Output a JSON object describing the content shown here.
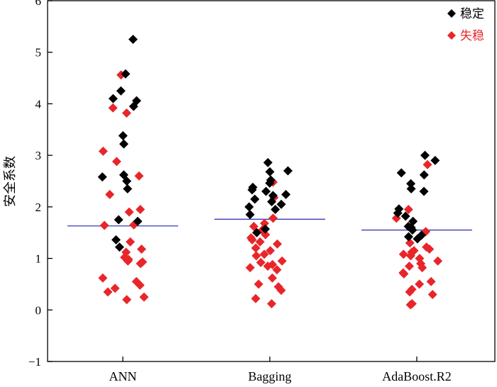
{
  "chart_data": {
    "type": "scatter",
    "title": "",
    "xlabel": "",
    "ylabel": "安全系数",
    "categories": [
      "ANN",
      "Bagging",
      "AdaBoost.R2"
    ],
    "ylim": [
      -1,
      6
    ],
    "yticks": [
      -1,
      0,
      1,
      2,
      3,
      4,
      5,
      6
    ],
    "grid": false,
    "legend_position": "top-right",
    "colors": {
      "stable": "#000000",
      "unstable": "#e8262a",
      "mean_line": "#3a3ab4"
    },
    "mean_lines": [
      1.63,
      1.76,
      1.55
    ],
    "series": [
      {
        "name": "稳定",
        "points": [
          {
            "cat": 0,
            "y": 5.25
          },
          {
            "cat": 0,
            "y": 4.58
          },
          {
            "cat": 0,
            "y": 4.25
          },
          {
            "cat": 0,
            "y": 4.1
          },
          {
            "cat": 0,
            "y": 4.06
          },
          {
            "cat": 0,
            "y": 3.95
          },
          {
            "cat": 0,
            "y": 3.38
          },
          {
            "cat": 0,
            "y": 3.22
          },
          {
            "cat": 0,
            "y": 2.62
          },
          {
            "cat": 0,
            "y": 2.58
          },
          {
            "cat": 0,
            "y": 2.5
          },
          {
            "cat": 0,
            "y": 2.35
          },
          {
            "cat": 0,
            "y": 1.75
          },
          {
            "cat": 0,
            "y": 1.72
          },
          {
            "cat": 0,
            "y": 1.36
          },
          {
            "cat": 0,
            "y": 1.22
          },
          {
            "cat": 1,
            "y": 2.86
          },
          {
            "cat": 1,
            "y": 2.7
          },
          {
            "cat": 1,
            "y": 2.68
          },
          {
            "cat": 1,
            "y": 2.52
          },
          {
            "cat": 1,
            "y": 2.46
          },
          {
            "cat": 1,
            "y": 2.38
          },
          {
            "cat": 1,
            "y": 2.33
          },
          {
            "cat": 1,
            "y": 2.3
          },
          {
            "cat": 1,
            "y": 2.24
          },
          {
            "cat": 1,
            "y": 2.22
          },
          {
            "cat": 1,
            "y": 2.15
          },
          {
            "cat": 1,
            "y": 2.1
          },
          {
            "cat": 1,
            "y": 2.05
          },
          {
            "cat": 1,
            "y": 2.0
          },
          {
            "cat": 1,
            "y": 1.95
          },
          {
            "cat": 1,
            "y": 1.85
          },
          {
            "cat": 1,
            "y": 1.57
          },
          {
            "cat": 1,
            "y": 1.5
          },
          {
            "cat": 2,
            "y": 3.0
          },
          {
            "cat": 2,
            "y": 2.9
          },
          {
            "cat": 2,
            "y": 2.66
          },
          {
            "cat": 2,
            "y": 2.62
          },
          {
            "cat": 2,
            "y": 2.45
          },
          {
            "cat": 2,
            "y": 2.35
          },
          {
            "cat": 2,
            "y": 2.3
          },
          {
            "cat": 2,
            "y": 1.96
          },
          {
            "cat": 2,
            "y": 1.88
          },
          {
            "cat": 2,
            "y": 1.82
          },
          {
            "cat": 2,
            "y": 1.72
          },
          {
            "cat": 2,
            "y": 1.62
          },
          {
            "cat": 2,
            "y": 1.6
          },
          {
            "cat": 2,
            "y": 1.55
          },
          {
            "cat": 2,
            "y": 1.45
          },
          {
            "cat": 2,
            "y": 1.42
          },
          {
            "cat": 2,
            "y": 1.38
          }
        ]
      },
      {
        "name": "失稳",
        "points": [
          {
            "cat": 0,
            "y": 4.56
          },
          {
            "cat": 0,
            "y": 3.92
          },
          {
            "cat": 0,
            "y": 3.82
          },
          {
            "cat": 0,
            "y": 3.08
          },
          {
            "cat": 0,
            "y": 2.88
          },
          {
            "cat": 0,
            "y": 2.6
          },
          {
            "cat": 0,
            "y": 2.24
          },
          {
            "cat": 0,
            "y": 1.95
          },
          {
            "cat": 0,
            "y": 1.9
          },
          {
            "cat": 0,
            "y": 1.65
          },
          {
            "cat": 0,
            "y": 1.64
          },
          {
            "cat": 0,
            "y": 1.32
          },
          {
            "cat": 0,
            "y": 1.18
          },
          {
            "cat": 0,
            "y": 1.12
          },
          {
            "cat": 0,
            "y": 1.02
          },
          {
            "cat": 0,
            "y": 0.98
          },
          {
            "cat": 0,
            "y": 0.95
          },
          {
            "cat": 0,
            "y": 0.93
          },
          {
            "cat": 0,
            "y": 0.9
          },
          {
            "cat": 0,
            "y": 0.62
          },
          {
            "cat": 0,
            "y": 0.55
          },
          {
            "cat": 0,
            "y": 0.48
          },
          {
            "cat": 0,
            "y": 0.42
          },
          {
            "cat": 0,
            "y": 0.35
          },
          {
            "cat": 0,
            "y": 0.25
          },
          {
            "cat": 0,
            "y": 0.2
          },
          {
            "cat": 1,
            "y": 2.48
          },
          {
            "cat": 1,
            "y": 2.18
          },
          {
            "cat": 1,
            "y": 1.78
          },
          {
            "cat": 1,
            "y": 1.68
          },
          {
            "cat": 1,
            "y": 1.62
          },
          {
            "cat": 1,
            "y": 1.55
          },
          {
            "cat": 1,
            "y": 1.46
          },
          {
            "cat": 1,
            "y": 1.4
          },
          {
            "cat": 1,
            "y": 1.36
          },
          {
            "cat": 1,
            "y": 1.32
          },
          {
            "cat": 1,
            "y": 1.28
          },
          {
            "cat": 1,
            "y": 1.2
          },
          {
            "cat": 1,
            "y": 1.15
          },
          {
            "cat": 1,
            "y": 1.08
          },
          {
            "cat": 1,
            "y": 1.05
          },
          {
            "cat": 1,
            "y": 0.95
          },
          {
            "cat": 1,
            "y": 0.92
          },
          {
            "cat": 1,
            "y": 0.88
          },
          {
            "cat": 1,
            "y": 0.85
          },
          {
            "cat": 1,
            "y": 0.82
          },
          {
            "cat": 1,
            "y": 0.78
          },
          {
            "cat": 1,
            "y": 0.62
          },
          {
            "cat": 1,
            "y": 0.5
          },
          {
            "cat": 1,
            "y": 0.45
          },
          {
            "cat": 1,
            "y": 0.38
          },
          {
            "cat": 1,
            "y": 0.22
          },
          {
            "cat": 1,
            "y": 0.12
          },
          {
            "cat": 2,
            "y": 2.82
          },
          {
            "cat": 2,
            "y": 1.95
          },
          {
            "cat": 2,
            "y": 1.78
          },
          {
            "cat": 2,
            "y": 1.6
          },
          {
            "cat": 2,
            "y": 1.52
          },
          {
            "cat": 2,
            "y": 1.3
          },
          {
            "cat": 2,
            "y": 1.22
          },
          {
            "cat": 2,
            "y": 1.18
          },
          {
            "cat": 2,
            "y": 1.15
          },
          {
            "cat": 2,
            "y": 1.12
          },
          {
            "cat": 2,
            "y": 1.08
          },
          {
            "cat": 2,
            "y": 1.05
          },
          {
            "cat": 2,
            "y": 1.0
          },
          {
            "cat": 2,
            "y": 0.95
          },
          {
            "cat": 2,
            "y": 0.9
          },
          {
            "cat": 2,
            "y": 0.85
          },
          {
            "cat": 2,
            "y": 0.82
          },
          {
            "cat": 2,
            "y": 0.72
          },
          {
            "cat": 2,
            "y": 0.7
          },
          {
            "cat": 2,
            "y": 0.55
          },
          {
            "cat": 2,
            "y": 0.5
          },
          {
            "cat": 2,
            "y": 0.4
          },
          {
            "cat": 2,
            "y": 0.35
          },
          {
            "cat": 2,
            "y": 0.3
          },
          {
            "cat": 2,
            "y": 0.12
          },
          {
            "cat": 2,
            "y": 0.1
          }
        ]
      }
    ]
  }
}
